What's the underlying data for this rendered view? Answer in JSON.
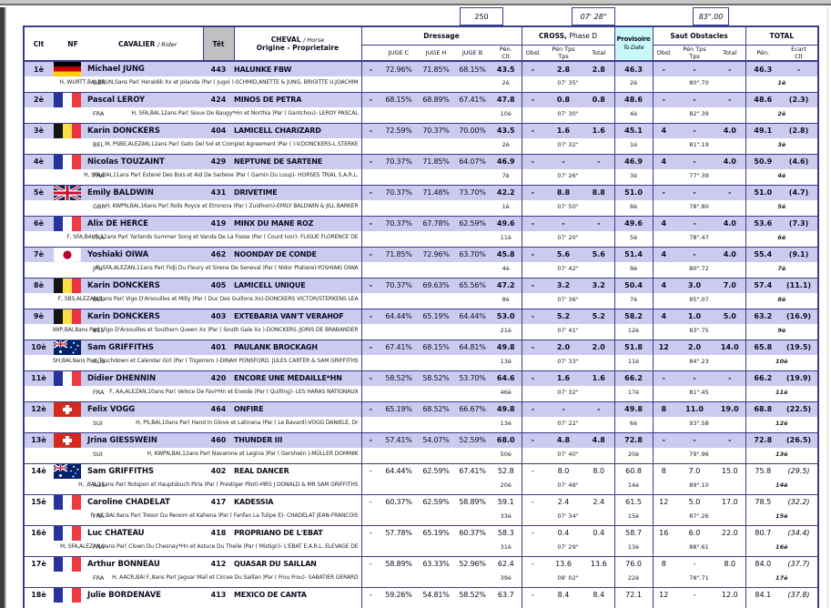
{
  "meta": {
    "box_points": "250",
    "box_cross_time": "07' 28\"",
    "box_jumping_time": "83\".00"
  },
  "colors": {
    "row_shade": "#cbcbf0",
    "border": "#3c3c8c",
    "prov_bg": "#c9f8f8",
    "tet_bg": "#c0c0c0"
  },
  "columns": {
    "clt": "Clt",
    "nf": "NF",
    "cavalier": "CAVALIER",
    "rider_sub": "/ Rider",
    "tet": "Têt",
    "cheval": "CHEVAL",
    "horse_sub": "/ Horse",
    "origine": "Origine - Proprietaire",
    "dressage": "Dressage",
    "cross": "CROSS,",
    "cross_phase": "Phase D",
    "provisoire": "Provisoire",
    "to_date": "To Date",
    "saut": "Saut Obstacles",
    "total": "TOTAL",
    "juge_c": "JUGE C",
    "juge_h": "JUGE H",
    "juge_b": "JUGE B",
    "pen": "Pén.",
    "clt_sub": "Clt",
    "obst": "Obst",
    "pen_tps": "Pén Tps",
    "tps": "Tps",
    "total_sub": "Total",
    "ecart": "Ecart"
  },
  "rows": [
    {
      "rank": "1è",
      "nf": "GER",
      "rider": "Michael JUNG",
      "num": "443",
      "horse": "HALUNKE FBW",
      "shaded": true,
      "d_dash": "-",
      "jc": "72.96%",
      "jh": "71.85%",
      "jb": "68.15%",
      "d_pen": "43.5",
      "x_obst": "-",
      "x_tps": "2.8",
      "x_tot": "2.8",
      "prov": "46.3",
      "s_obst": "-",
      "s_tps": "-",
      "s_tot": "-",
      "t_pen": "46.3",
      "t_ecart": "-",
      "sub": {
        "code": "GER",
        "breeding": "H, WURTT,BAI BRUN,Sans Par( Heraldik Xx  et Jolanda )Par ( Jugol )-SCHMID,ANETTE & JUNG, BRIGITTE U.JOACHIM",
        "d_rank": "2è",
        "x_time": "07' 35\"",
        "prov_rank": "2è",
        "s_time": "80\".70",
        "t_rank": "1è"
      }
    },
    {
      "rank": "2è",
      "nf": "FRA",
      "rider": "Pascal LEROY",
      "num": "424",
      "horse": "MINOS DE PETRA",
      "shaded": true,
      "d_dash": "-",
      "jc": "68.15%",
      "jh": "68.89%",
      "jb": "67.41%",
      "d_pen": "47.8",
      "x_obst": "-",
      "x_tps": "0.8",
      "x_tot": "0.8",
      "prov": "48.6",
      "s_obst": "-",
      "s_tps": "-",
      "s_tot": "-",
      "t_pen": "48.6",
      "t_ecart": "(2.3)",
      "sub": {
        "code": "FRA",
        "breeding": "H, SFA,BAI,12ans Par( Sioux De Baugy*Hn et Northia )Par ( Gantchou)- LEROY PASCAL",
        "d_rank": "10è",
        "x_time": "07' 30\"",
        "prov_rank": "4è",
        "s_time": "82\".39",
        "t_rank": "2è"
      }
    },
    {
      "rank": "3è",
      "nf": "BEL",
      "rider": "Karin DONCKERS",
      "num": "404",
      "horse": "LAMICELL CHARIZARD",
      "shaded": true,
      "d_dash": "-",
      "jc": "72.59%",
      "jh": "70.37%",
      "jb": "70.00%",
      "d_pen": "43.5",
      "x_obst": "-",
      "x_tps": "1.6",
      "x_tot": "1.6",
      "prov": "45.1",
      "s_obst": "4",
      "s_tps": "-",
      "s_tot": "4.0",
      "t_pen": "49.1",
      "t_ecart": "(2.8)",
      "sub": {
        "code": "BEL",
        "breeding": "M, PSBE,ALEZAN,12ans Par( Gato Del Sol et Complet Agreement  )Par ( )-V.DONCKERS-L.STERKE",
        "d_rank": "2è",
        "x_time": "07' 32\"",
        "prov_rank": "1è",
        "s_time": "81\".19",
        "t_rank": "3è"
      }
    },
    {
      "rank": "4è",
      "nf": "FRA",
      "rider": "Nicolas TOUZAINT",
      "num": "429",
      "horse": "NEPTUNE DE SARTENE",
      "shaded": true,
      "d_dash": "-",
      "jc": "70.37%",
      "jh": "71.85%",
      "jb": "64.07%",
      "d_pen": "46.9",
      "x_obst": "-",
      "x_tps": "-",
      "x_tot": "-",
      "prov": "46.9",
      "s_obst": "4",
      "s_tps": "-",
      "s_tot": "4.0",
      "t_pen": "50.9",
      "t_ecart": "(4.6)",
      "sub": {
        "code": "FRA",
        "breeding": "H, SFA,BAI,11ans Par( Esterel Des Bois et Aid De Sartene )Par ( Gamin Du Loup)- HORSES TRIAL S.A.R.L.",
        "d_rank": "7è",
        "x_time": "07' 26\"",
        "prov_rank": "3è",
        "s_time": "77\".39",
        "t_rank": "4è"
      }
    },
    {
      "rank": "5è",
      "nf": "GBR",
      "rider": "Emily BALDWIN",
      "num": "431",
      "horse": "DRIVETIME",
      "shaded": true,
      "d_dash": "-",
      "jc": "70.37%",
      "jh": "71.48%",
      "jb": "73.70%",
      "d_pen": "42.2",
      "x_obst": "-",
      "x_tps": "8.8",
      "x_tot": "8.8",
      "prov": "51.0",
      "s_obst": "-",
      "s_tps": "-",
      "s_tot": "-",
      "t_pen": "51.0",
      "t_ecart": "(4.7)",
      "sub": {
        "code": "GBR",
        "breeding": "H, KWPN,BAI,16ans Par( Rolls Royce  et Etronora  )Par ( Zuidhorn)-EMILY BALDWIN & JILL BARKER",
        "d_rank": "1è",
        "x_time": "07' 50\"",
        "prov_rank": "8è",
        "s_time": "78\".80",
        "t_rank": "5è"
      }
    },
    {
      "rank": "6è",
      "nf": "FRA",
      "rider": "Alix DE HERCE",
      "num": "419",
      "horse": "MINX DU MANE ROZ",
      "shaded": true,
      "d_dash": "-",
      "jc": "70.37%",
      "jh": "67.78%",
      "jb": "62.59%",
      "d_pen": "49.6",
      "x_obst": "-",
      "x_tps": "-",
      "x_tot": "-",
      "prov": "49.6",
      "s_obst": "4",
      "s_tps": "-",
      "s_tot": "4.0",
      "t_pen": "53.6",
      "t_ecart": "(7.3)",
      "sub": {
        "code": "FRA",
        "breeding": "F, SFA,BAI F.,12ans Par( Yarlands Summer Song et Vanda De La Fosse )Par ( Count Ivor)- FLIGUE FLORENCE DE",
        "d_rank": "11è",
        "x_time": "07' 20\"",
        "prov_rank": "5è",
        "s_time": "78\".47",
        "t_rank": "6è"
      }
    },
    {
      "rank": "7è",
      "nf": "JPN",
      "rider": "Yoshiaki OIWA",
      "num": "462",
      "horse": "NOONDAY DE CONDE",
      "shaded": true,
      "d_dash": "-",
      "jc": "71.85%",
      "jh": "72.96%",
      "jb": "63.70%",
      "d_pen": "45.8",
      "x_obst": "-",
      "x_tps": "5.6",
      "x_tot": "5.6",
      "prov": "51.4",
      "s_obst": "4",
      "s_tps": "-",
      "s_tot": "4.0",
      "t_pen": "55.4",
      "t_ecart": "(9.1)",
      "sub": {
        "code": "JPN",
        "breeding": "F, SFA,ALEZAN,11ans Par( Fidji Du Fleury et Sirene De Seneval )Par ( Nidor Platiere)-YOSHIAKI OIWA",
        "d_rank": "4è",
        "x_time": "07' 42\"",
        "prov_rank": "9è",
        "s_time": "80\".72",
        "t_rank": "7è"
      }
    },
    {
      "rank": "8è",
      "nf": "BEL",
      "rider": "Karin DONCKERS",
      "num": "405",
      "horse": "LAMICELL UNIQUE",
      "shaded": true,
      "d_dash": "-",
      "jc": "70.37%",
      "jh": "69.63%",
      "jb": "65.56%",
      "d_pen": "47.2",
      "x_obst": "-",
      "x_tps": "3.2",
      "x_tot": "3.2",
      "prov": "50.4",
      "s_obst": "4",
      "s_tps": "3.0",
      "s_tot": "7.0",
      "t_pen": "57.4",
      "t_ecart": "(11.1)",
      "sub": {
        "code": "BEL",
        "breeding": "F, SBS,ALEZAN,8ans Par( Vigo D'Arsouilles et Milly  )Par ( Duc Des Guillons Xx)-DONCKERS VICTOR/STERKENS LEA",
        "d_rank": "8è",
        "x_time": "07' 36\"",
        "prov_rank": "7è",
        "s_time": "85\".07",
        "t_rank": "8è"
      }
    },
    {
      "rank": "9è",
      "nf": "BEL",
      "rider": "Karin DONCKERS",
      "num": "403",
      "horse": "EXTEBARIA VAN'T VERAHOF",
      "shaded": true,
      "d_dash": "-",
      "jc": "64.44%",
      "jh": "65.19%",
      "jb": "64.44%",
      "d_pen": "53.0",
      "x_obst": "-",
      "x_tps": "5.2",
      "x_tot": "5.2",
      "prov": "58.2",
      "s_obst": "4",
      "s_tps": "1.0",
      "s_tot": "5.0",
      "t_pen": "63.2",
      "t_ecart": "(16.9)",
      "sub": {
        "code": "BEL",
        "breeding": "H, BWP,BAI,8ans Par( Vigo D'Arsouilles et Southern Queen Xx )Par ( South Gale Xx )-DONCKERS /JORIS DE BRABANDER",
        "d_rank": "21è",
        "x_time": "07' 41\"",
        "prov_rank": "12è",
        "s_time": "83\".75",
        "t_rank": "9è"
      }
    },
    {
      "rank": "10è",
      "nf": "AUS",
      "rider": "Sam GRIFFITHS",
      "num": "401",
      "horse": "PAULANK BROCKAGH",
      "shaded": true,
      "d_dash": "-",
      "jc": "67.41%",
      "jh": "68.15%",
      "jb": "64.81%",
      "d_pen": "49.8",
      "x_obst": "-",
      "x_tps": "2.0",
      "x_tot": "2.0",
      "prov": "51.8",
      "s_obst": "12",
      "s_tps": "2.0",
      "s_tot": "14.0",
      "t_pen": "65.8",
      "t_ecart": "(19.5)",
      "sub": {
        "code": "AUS",
        "breeding": "F, ISH,BAI,9ans Par( Touchdown  et Calendar Girl )Par ( Trigerrero )-DINAH PONSFORD, JULES CARTER & SAM GRIFFITHS",
        "d_rank": "13è",
        "x_time": "07' 33\"",
        "prov_rank": "11è",
        "s_time": "84\".23",
        "t_rank": "10è"
      }
    },
    {
      "rank": "11è",
      "nf": "FRA",
      "rider": "Didier DHENNIN",
      "num": "420",
      "horse": "ENCORE UNE MEDAILLE*HN",
      "shaded": true,
      "d_dash": "-",
      "jc": "58.52%",
      "jh": "58.52%",
      "jb": "53.70%",
      "d_pen": "64.6",
      "x_obst": "-",
      "x_tps": "1.6",
      "x_tot": "1.6",
      "prov": "66.2",
      "s_obst": "-",
      "s_tps": "-",
      "s_tot": "-",
      "t_pen": "66.2",
      "t_ecart": "(19.9)",
      "sub": {
        "code": "FRA",
        "breeding": "F, AA,ALEZAN,10ans Par( Veloce De Favi*Hn et Eneide )Par ( Quilling)- LES HARAS NATIONAUX",
        "d_rank": "46è",
        "x_time": "07' 32\"",
        "prov_rank": "17è",
        "s_time": "81\".45",
        "t_rank": "11è"
      }
    },
    {
      "rank": "12è",
      "nf": "SUI",
      "rider": "Felix VOGG",
      "num": "464",
      "horse": "ONFIRE",
      "shaded": true,
      "d_dash": "-",
      "jc": "65.19%",
      "jh": "68.52%",
      "jb": "66.67%",
      "d_pen": "49.8",
      "x_obst": "-",
      "x_tps": "-",
      "x_tot": "-",
      "prov": "49.8",
      "s_obst": "8",
      "s_tps": "11.0",
      "s_tot": "19.0",
      "t_pen": "68.8",
      "t_ecart": "(22.5)",
      "sub": {
        "code": "SUI",
        "breeding": "H, PS,BAI,10ans Par( Hand In Glove et Latinana )Par ( Le Bavard)-VOGG DANIELE, Dr",
        "d_rank": "13è",
        "x_time": "07' 22\"",
        "prov_rank": "6è",
        "s_time": "93\".58",
        "t_rank": "12è"
      }
    },
    {
      "rank": "13è",
      "nf": "SUI",
      "rider": "Jrina GIESSWEIN",
      "num": "460",
      "horse": "THUNDER III",
      "shaded": true,
      "d_dash": "-",
      "jc": "57.41%",
      "jh": "54.07%",
      "jb": "52.59%",
      "d_pen": "68.0",
      "x_obst": "-",
      "x_tps": "4.8",
      "x_tot": "4.8",
      "prov": "72.8",
      "s_obst": "-",
      "s_tps": "-",
      "s_tot": "-",
      "t_pen": "72.8",
      "t_ecart": "(26.5)",
      "sub": {
        "code": "SUI",
        "breeding": "H, KWPN,BAI,12ans Par( Navarone et Legina  )Par ( Gershwin )-MÜLLER DOMINIK",
        "d_rank": "50è",
        "x_time": "07' 40\"",
        "prov_rank": "20è",
        "s_time": "79\".96",
        "t_rank": "13è"
      }
    },
    {
      "rank": "14è",
      "nf": "AUS",
      "rider": "Sam GRIFFITHS",
      "num": "402",
      "horse": "REAL DANCER",
      "shaded": false,
      "d_dash": "-",
      "jc": "64.44%",
      "jh": "62.59%",
      "jb": "67.41%",
      "d_pen": "52.8",
      "x_obst": "-",
      "x_tps": "8.0",
      "x_tot": "8.0",
      "prov": "60.8",
      "s_obst": "8",
      "s_tps": "7.0",
      "s_tot": "15.0",
      "t_pen": "75.8",
      "t_ecart": "(29.5)",
      "sub": {
        "code": "AUS",
        "breeding": "H, ,BAI,11ans Par( Rotspon et Hauptsbuch Pirla  )Par ( Prestiger Pilot)-MRS J DONALD & MR SAM GRIFFITHS",
        "d_rank": "20è",
        "x_time": "07' 48\"",
        "prov_rank": "14è",
        "s_time": "89\".10",
        "t_rank": "14è"
      }
    },
    {
      "rank": "15è",
      "nf": "FRA",
      "rider": "Caroline CHADELAT",
      "num": "417",
      "horse": "KADESSIA",
      "shaded": false,
      "d_dash": "-",
      "jc": "60.37%",
      "jh": "62.59%",
      "jb": "58.89%",
      "d_pen": "59.1",
      "x_obst": "-",
      "x_tps": "2.4",
      "x_tot": "2.4",
      "prov": "61.5",
      "s_obst": "12",
      "s_tps": "5.0",
      "s_tot": "17.0",
      "t_pen": "78.5",
      "t_ecart": "(32.2)",
      "sub": {
        "code": "FRA",
        "breeding": "F, AC,BAI,9ans Par( Tresor Du Renom et Kahena )Par ( Fanfan La Tulipe E)- CHADELAT JEAN-FRANCOIS",
        "d_rank": "33è",
        "x_time": "07' 34\"",
        "prov_rank": "15è",
        "s_time": "87\".26",
        "t_rank": "15è"
      }
    },
    {
      "rank": "16è",
      "nf": "FRA",
      "rider": "Luc CHATEAU",
      "num": "418",
      "horse": "PROPRIANO DE L'EBAT",
      "shaded": false,
      "d_dash": "-",
      "jc": "57.78%",
      "jh": "65.19%",
      "jb": "60.37%",
      "d_pen": "58.3",
      "x_obst": "-",
      "x_tps": "0.4",
      "x_tot": "0.4",
      "prov": "58.7",
      "s_obst": "16",
      "s_tps": "6.0",
      "s_tot": "22.0",
      "t_pen": "80.7",
      "t_ecart": "(34.4)",
      "sub": {
        "code": "FRA",
        "breeding": "M, SFA,ALEZAN,9ans Par( Clown Du Chesnay*Hn et Astuce Du Theile )Par ( Mistigri)- L'EBAT E.A.R.L. ELEVAGE DE",
        "d_rank": "31è",
        "x_time": "07' 29\"",
        "prov_rank": "13è",
        "s_time": "88\".61",
        "t_rank": "16è"
      }
    },
    {
      "rank": "17è",
      "nf": "FRA",
      "rider": "Arthur BONNEAU",
      "num": "412",
      "horse": "QUASAR DU SAILLAN",
      "shaded": false,
      "d_dash": "-",
      "jc": "58.89%",
      "jh": "63.33%",
      "jb": "52.96%",
      "d_pen": "62.4",
      "x_obst": "-",
      "x_tps": "13.6",
      "x_tot": "13.6",
      "prov": "76.0",
      "s_obst": "8",
      "s_tps": "-",
      "s_tot": "8.0",
      "t_pen": "84.0",
      "t_ecart": "(37.7)",
      "sub": {
        "code": "FRA",
        "breeding": "H, AACR,BAI F.,8ans Par( Jaguar Mail et Circee Du Saillan )Par ( Frou Frou)- SABATIER GERARD",
        "d_rank": "39è",
        "x_time": "08' 02\"",
        "prov_rank": "22è",
        "s_time": "78\".71",
        "t_rank": "17è"
      }
    },
    {
      "rank": "18è",
      "nf": "FRA",
      "rider": "Julie BORDENAVE",
      "num": "413",
      "horse": "MEXICO DE CANTA",
      "shaded": false,
      "d_dash": "-",
      "jc": "59.26%",
      "jh": "54.81%",
      "jb": "58.52%",
      "d_pen": "63.7",
      "x_obst": "-",
      "x_tps": "8.4",
      "x_tot": "8.4",
      "prov": "72.1",
      "s_obst": "12",
      "s_tps": "-",
      "s_tot": "12.0",
      "t_pen": "84.1",
      "t_ecart": "(37.8)",
      "sub": {
        "code": "",
        "breeding": "",
        "d_rank": "",
        "x_time": "",
        "prov_rank": "",
        "s_time": "",
        "t_rank": ""
      }
    }
  ]
}
